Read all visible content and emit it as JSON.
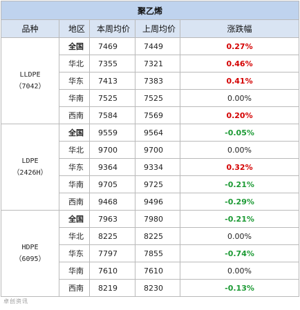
{
  "title": "聚乙烯",
  "headers": {
    "product": "品种",
    "region": "地区",
    "this_week": "本周均价",
    "last_week": "上周均价",
    "change": "涨跌幅"
  },
  "groups": [
    {
      "name": "LLDPE",
      "code": "（7042）",
      "rows": [
        {
          "region": "全国",
          "this_week": "7469",
          "last_week": "7449",
          "change": "0.27%",
          "trend": "up",
          "bold": true
        },
        {
          "region": "华北",
          "this_week": "7355",
          "last_week": "7321",
          "change": "0.46%",
          "trend": "up",
          "bold": false
        },
        {
          "region": "华东",
          "this_week": "7413",
          "last_week": "7383",
          "change": "0.41%",
          "trend": "up",
          "bold": false
        },
        {
          "region": "华南",
          "this_week": "7525",
          "last_week": "7525",
          "change": "0.00%",
          "trend": "flat",
          "bold": false
        },
        {
          "region": "西南",
          "this_week": "7584",
          "last_week": "7569",
          "change": "0.20%",
          "trend": "up",
          "bold": false
        }
      ]
    },
    {
      "name": "LDPE",
      "code": "（2426H）",
      "rows": [
        {
          "region": "全国",
          "this_week": "9559",
          "last_week": "9564",
          "change": "-0.05%",
          "trend": "down",
          "bold": true
        },
        {
          "region": "华北",
          "this_week": "9700",
          "last_week": "9700",
          "change": "0.00%",
          "trend": "flat",
          "bold": false
        },
        {
          "region": "华东",
          "this_week": "9364",
          "last_week": "9334",
          "change": "0.32%",
          "trend": "up",
          "bold": false
        },
        {
          "region": "华南",
          "this_week": "9705",
          "last_week": "9725",
          "change": "-0.21%",
          "trend": "down",
          "bold": false
        },
        {
          "region": "西南",
          "this_week": "9468",
          "last_week": "9496",
          "change": "-0.29%",
          "trend": "down",
          "bold": false
        }
      ]
    },
    {
      "name": "HDPE",
      "code": "（6095）",
      "rows": [
        {
          "region": "全国",
          "this_week": "7963",
          "last_week": "7980",
          "change": "-0.21%",
          "trend": "down",
          "bold": true
        },
        {
          "region": "华北",
          "this_week": "8225",
          "last_week": "8225",
          "change": "0.00%",
          "trend": "flat",
          "bold": false
        },
        {
          "region": "华东",
          "this_week": "7797",
          "last_week": "7855",
          "change": "-0.74%",
          "trend": "down",
          "bold": false
        },
        {
          "region": "华南",
          "this_week": "7610",
          "last_week": "7610",
          "change": "0.00%",
          "trend": "flat",
          "bold": false
        },
        {
          "region": "西南",
          "this_week": "8219",
          "last_week": "8230",
          "change": "-0.13%",
          "trend": "down",
          "bold": false
        }
      ]
    }
  ],
  "colors": {
    "up": "#d40000",
    "down": "#1c9a34",
    "header_bg": "#d9e4f3",
    "title_bg": "#bfd3ee"
  },
  "watermark": "卓创资讯"
}
